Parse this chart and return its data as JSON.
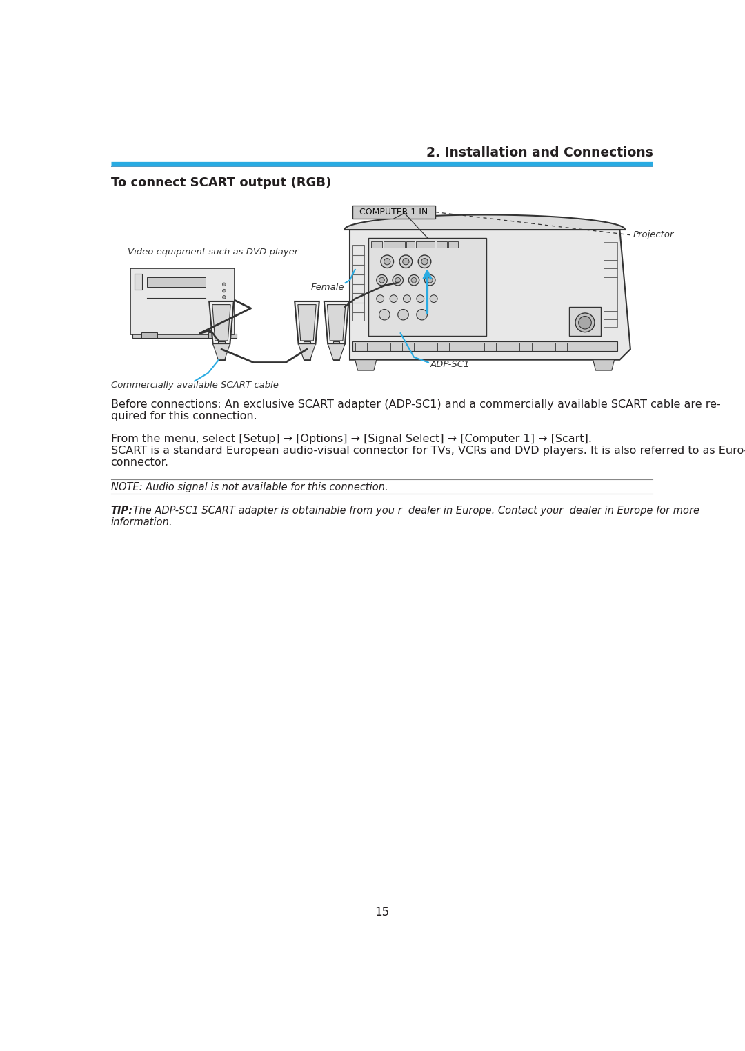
{
  "page_bg": "#ffffff",
  "header_line_color1": "#29abe2",
  "header_line_color2": "#1c7db5",
  "header_text": "2. Installation and Connections",
  "header_text_color": "#231f20",
  "section_title": "To connect SCART output (RGB)",
  "section_title_color": "#231f20",
  "label_projector": "Projector",
  "label_computer1in": "COMPUTER 1 IN",
  "label_female": "Female",
  "label_adpsc1": "ADP-SC1",
  "label_video": "Video equipment such as DVD player",
  "label_scart_cable": "Commercially available SCART cable",
  "body1_line1": "Before connections: An exclusive SCART adapter (ADP-SC1) and a commercially available SCART cable are re-",
  "body1_line2": "quired for this connection.",
  "body2_line1": "From the menu, select [Setup] → [Options] → [Signal Select] → [Computer 1] → [Scart].",
  "body2_line2": "SCART is a standard European audio-visual connector for TVs, VCRs and DVD players. It is also referred to as Euro-",
  "body2_line3": "connector.",
  "note_text": "NOTE: Audio signal is not available for this connection.",
  "tip_bold": "TIP:",
  "tip_italic": " The ADP-SC1 SCART adapter is obtainable from you r  dealer in Europe. Contact your  dealer in Europe for more",
  "tip_line2": "information.",
  "page_number": "15",
  "accent_color": "#29abe2",
  "dark": "#333333",
  "mid": "#666666",
  "light": "#999999"
}
